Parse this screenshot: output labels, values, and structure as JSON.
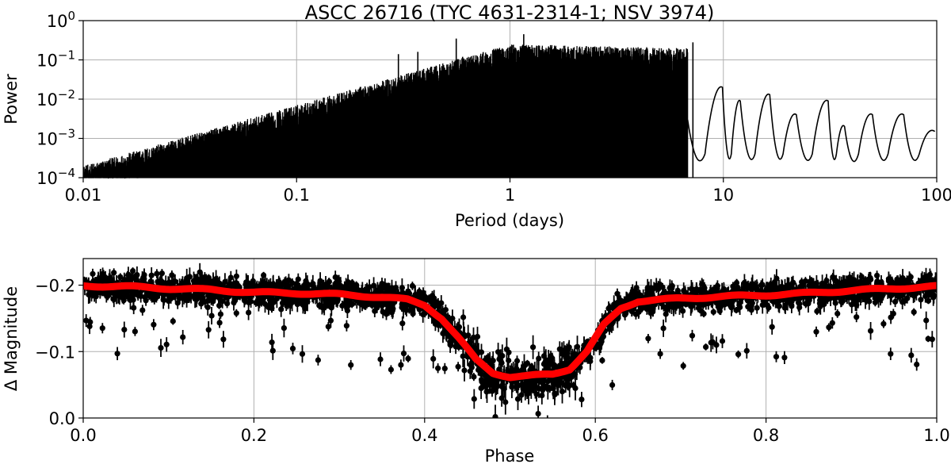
{
  "chart_data": [
    {
      "type": "line",
      "title": "ASCC 26716  (TYC 4631-2314-1; NSV 3974)",
      "xlabel": "Period (days)",
      "ylabel": "Power",
      "xscale": "log",
      "yscale": "log",
      "xlim": [
        0.01,
        100
      ],
      "ylim": [
        0.0001,
        1
      ],
      "grid": true,
      "x_ticks": [
        {
          "value": 0.01,
          "label": "0.01"
        },
        {
          "value": 0.1,
          "label": "0.1"
        },
        {
          "value": 1,
          "label": "1"
        },
        {
          "value": 10,
          "label": "10"
        },
        {
          "value": 100,
          "label": "100"
        }
      ],
      "y_ticks": [
        {
          "value": 1,
          "base": "10",
          "exp": "0"
        },
        {
          "value": 0.1,
          "base": "10",
          "exp": "−1"
        },
        {
          "value": 0.01,
          "base": "10",
          "exp": "−2"
        },
        {
          "value": 0.001,
          "base": "10",
          "exp": "−3"
        },
        {
          "value": 0.0001,
          "base": "10",
          "exp": "−4"
        }
      ],
      "color": "#000000",
      "peaks": [
        {
          "x": 0.3,
          "y": 0.14
        },
        {
          "x": 0.37,
          "y": 0.16
        },
        {
          "x": 0.56,
          "y": 0.35
        },
        {
          "x": 0.6,
          "y": 0.12
        },
        {
          "x": 1.0,
          "y": 0.15
        },
        {
          "x": 1.16,
          "y": 0.45
        },
        {
          "x": 1.3,
          "y": 0.15
        },
        {
          "x": 3.6,
          "y": 0.12
        },
        {
          "x": 7.2,
          "y": 0.28
        }
      ],
      "long_period_lobes": [
        {
          "x": 9.9,
          "y": 0.02
        },
        {
          "x": 12.0,
          "y": 0.009
        },
        {
          "x": 16.5,
          "y": 0.013
        },
        {
          "x": 22.0,
          "y": 0.004
        },
        {
          "x": 31.0,
          "y": 0.009
        },
        {
          "x": 37.0,
          "y": 0.002
        },
        {
          "x": 50.0,
          "y": 0.004
        },
        {
          "x": 70.0,
          "y": 0.004
        },
        {
          "x": 98.0,
          "y": 0.0015
        }
      ]
    },
    {
      "type": "scatter",
      "xlabel": "Phase",
      "ylabel": "Δ Magnitude",
      "xlim": [
        0.0,
        1.0
      ],
      "ylim": [
        -0.24,
        0.0
      ],
      "y_inverted": true,
      "grid": true,
      "x_ticks": [
        {
          "value": 0.0,
          "label": "0.0"
        },
        {
          "value": 0.2,
          "label": "0.2"
        },
        {
          "value": 0.4,
          "label": "0.4"
        },
        {
          "value": 0.6,
          "label": "0.6"
        },
        {
          "value": 0.8,
          "label": "0.8"
        },
        {
          "value": 1.0,
          "label": "1.0"
        }
      ],
      "y_ticks": [
        {
          "value": -0.2,
          "label": "−0.2"
        },
        {
          "value": -0.1,
          "label": "−0.1"
        },
        {
          "value": 0.0,
          "label": "0.0"
        }
      ],
      "point_color": "#000000",
      "model_color": "#ff0000",
      "model_curve": [
        {
          "x": 0.0,
          "y": -0.199
        },
        {
          "x": 0.05,
          "y": -0.198
        },
        {
          "x": 0.1,
          "y": -0.195
        },
        {
          "x": 0.15,
          "y": -0.193
        },
        {
          "x": 0.2,
          "y": -0.189
        },
        {
          "x": 0.25,
          "y": -0.188
        },
        {
          "x": 0.3,
          "y": -0.186
        },
        {
          "x": 0.35,
          "y": -0.182
        },
        {
          "x": 0.38,
          "y": -0.178
        },
        {
          "x": 0.4,
          "y": -0.17
        },
        {
          "x": 0.42,
          "y": -0.15
        },
        {
          "x": 0.44,
          "y": -0.12
        },
        {
          "x": 0.46,
          "y": -0.088
        },
        {
          "x": 0.48,
          "y": -0.068
        },
        {
          "x": 0.5,
          "y": -0.062
        },
        {
          "x": 0.52,
          "y": -0.063
        },
        {
          "x": 0.55,
          "y": -0.066
        },
        {
          "x": 0.57,
          "y": -0.074
        },
        {
          "x": 0.59,
          "y": -0.1
        },
        {
          "x": 0.61,
          "y": -0.14
        },
        {
          "x": 0.63,
          "y": -0.165
        },
        {
          "x": 0.65,
          "y": -0.176
        },
        {
          "x": 0.7,
          "y": -0.18
        },
        {
          "x": 0.75,
          "y": -0.183
        },
        {
          "x": 0.8,
          "y": -0.185
        },
        {
          "x": 0.85,
          "y": -0.188
        },
        {
          "x": 0.9,
          "y": -0.192
        },
        {
          "x": 0.95,
          "y": -0.195
        },
        {
          "x": 1.0,
          "y": -0.198
        }
      ]
    }
  ]
}
